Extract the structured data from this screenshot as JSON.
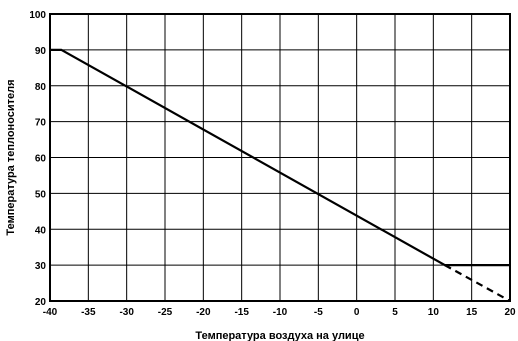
{
  "chart_data": {
    "type": "line",
    "xlabel": "Температура воздуха на улице",
    "ylabel": "Температура теплоносителя",
    "xlim": [
      -40,
      20
    ],
    "ylim": [
      20,
      100
    ],
    "x_ticks": [
      "-40",
      "-35",
      "-30",
      "-25",
      "-20",
      "-15",
      "-10",
      "-5",
      "0",
      "5",
      "10",
      "15",
      "20"
    ],
    "y_ticks": [
      "20",
      "30",
      "40",
      "50",
      "60",
      "70",
      "80",
      "90",
      "100"
    ],
    "grid": true,
    "series": [
      {
        "style": "solid",
        "color": "#000000",
        "points": [
          [
            -40,
            90
          ],
          [
            -38.5,
            90
          ],
          [
            11.5,
            30
          ],
          [
            20,
            30
          ]
        ]
      },
      {
        "style": "dashed",
        "color": "#000000",
        "points": [
          [
            11.5,
            30
          ],
          [
            20,
            20
          ]
        ]
      }
    ]
  }
}
